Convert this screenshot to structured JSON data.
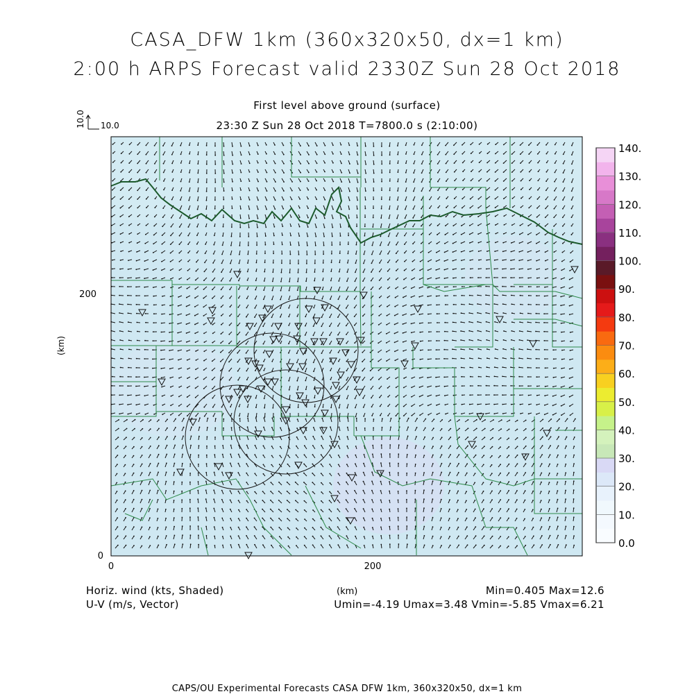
{
  "header": {
    "title_line1": "CASA_DFW 1km (360x320x50, dx=1 km)",
    "title_line2": "2:00 h ARPS Forecast valid 2330Z Sun 28 Oct 2018",
    "level": "First level above ground (surface)",
    "valid_time": "23:30 Z Sun 28 Oct 2018   T=7800.0 s (2:10:00)"
  },
  "vector_key": {
    "vertical_label": "10.0",
    "horizontal_label": "10.0"
  },
  "axes": {
    "x_unit": "(km)",
    "y_unit": "(km)",
    "x_ticks": [
      "0",
      "200"
    ],
    "y_ticks": [
      "0",
      "200"
    ]
  },
  "colorbar": {
    "labels": [
      "140.",
      "130.",
      "120.",
      "110.",
      "100.",
      "90.",
      "80.",
      "70.",
      "60.",
      "50.",
      "40.",
      "30.",
      "20.",
      "10.",
      "0.0"
    ],
    "colors": [
      "#f5d5f5",
      "#f2b4ec",
      "#e88fd8",
      "#d778c8",
      "#c45fb4",
      "#a8449c",
      "#8a3080",
      "#74205e",
      "#5a1a28",
      "#7a1010",
      "#cc1010",
      "#e51a1a",
      "#f43a10",
      "#f96a10",
      "#fb8c10",
      "#fcae18",
      "#f8d020",
      "#ecec30",
      "#d8f048",
      "#c6f28a",
      "#d4f2bc",
      "#c8e8b8",
      "#d9d9f5",
      "#dce8f8",
      "#e8f2fc",
      "#f0f8fd",
      "#f4f9fe",
      "#f9fcff"
    ]
  },
  "footer": {
    "left_line1": "Horiz. wind (kts, Shaded)",
    "left_line2": "U-V (m/s, Vector)",
    "center": "(km)",
    "right_line1": "Min=0.405 Max=12.6",
    "right_line2": "Umin=-4.19 Umax=3.48 Vmin=-5.85 Vmax=6.21",
    "credit": "CAPS/OU Experimental Forecasts  CASA DFW 1km, 360x320x50, dx=1 km"
  }
}
